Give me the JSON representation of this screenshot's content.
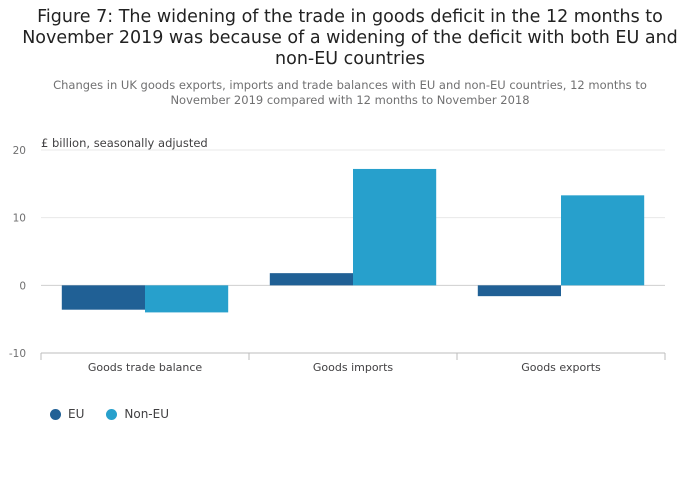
{
  "chart_data": {
    "type": "bar",
    "title": "Figure 7: The widening of the trade in goods deficit in the 12 months to November 2019 was because of a widening of the deficit with both EU and non-EU countries",
    "subtitle": "Changes in UK goods exports, imports and trade balances with EU and non-EU countries, 12 months to November 2019 compared with 12 months to November 2018",
    "ylabel": "£ billion, seasonally adjusted",
    "xlabel": "",
    "categories": [
      "Goods trade balance",
      "Goods imports",
      "Goods exports"
    ],
    "series": [
      {
        "name": "EU",
        "color": "#206095",
        "values": [
          -3.6,
          1.8,
          -1.6
        ]
      },
      {
        "name": "Non-EU",
        "color": "#27a0cc",
        "values": [
          -4.0,
          17.2,
          13.3
        ]
      }
    ],
    "ylim": [
      -10,
      20
    ],
    "yticks": [
      20,
      10,
      0,
      -10
    ],
    "grid": true,
    "legend_position": "bottom-left"
  }
}
